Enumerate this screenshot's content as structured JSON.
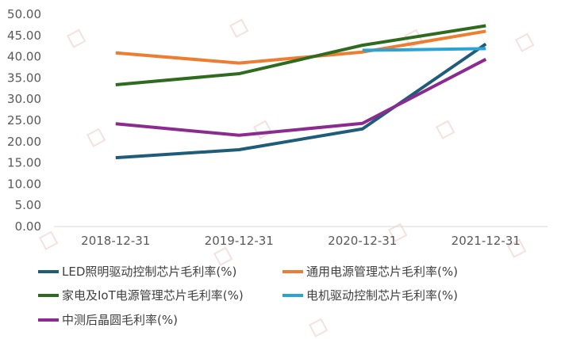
{
  "chart_data": {
    "type": "line",
    "categories": [
      "2018-12-31",
      "2019-12-31",
      "2020-12-31",
      "2021-12-31"
    ],
    "ylim": [
      0,
      50
    ],
    "ytick_step": 5,
    "ytick_labels": [
      "0.00",
      "5.00",
      "10.00",
      "15.00",
      "20.00",
      "25.00",
      "30.00",
      "35.00",
      "40.00",
      "45.00",
      "50.00"
    ],
    "grid": false,
    "legend_position": "bottom",
    "series": [
      {
        "name": "LED照明驱动控制芯片毛利率(%)",
        "color": "#1f5c7a",
        "values": [
          16.2,
          18.1,
          23.0,
          43.0
        ]
      },
      {
        "name": "通用电源管理芯片毛利率(%)",
        "color": "#ed7d31",
        "values": [
          40.9,
          38.5,
          41.1,
          46.0
        ]
      },
      {
        "name": "家电及IoT电源管理芯片毛利率(%)",
        "color": "#2e6b1f",
        "values": [
          33.4,
          36.0,
          42.7,
          47.3
        ]
      },
      {
        "name": "电机驱动控制芯片毛利率(%)",
        "color": "#2aa3d6",
        "values": [
          null,
          null,
          41.5,
          41.9
        ]
      },
      {
        "name": "中测后晶圆毛利率(%)",
        "color": "#8b2a8f",
        "values": [
          24.2,
          21.5,
          24.3,
          39.4
        ]
      }
    ]
  }
}
